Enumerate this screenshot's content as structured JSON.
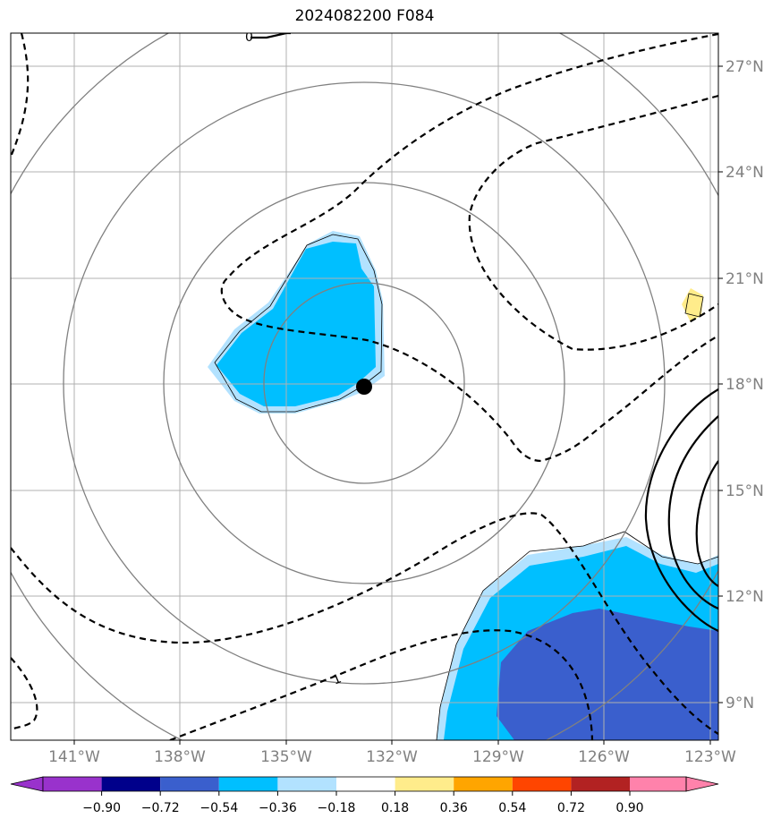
{
  "title": "2024082200 F084",
  "colors": {
    "neg_090_plus": "#9932cc",
    "neg_072_090": "#00008b",
    "neg_054_072": "#3a5fcd",
    "neg_036_054": "#00bfff",
    "neg_018_036": "#b2e2ff",
    "neutral": "#ffffff",
    "pos_018_036": "#ffec8b",
    "pos_036_054": "#ffa500",
    "pos_054_072": "#ff4500",
    "pos_072_090": "#b22222",
    "pos_090_plus": "#ff82ab",
    "grid": "#b0b0b0",
    "range_rings": "#808080",
    "axis_labels": "#808080"
  },
  "map": {
    "lon_labels": [
      "141°W",
      "138°W",
      "135°W",
      "132°W",
      "129°W",
      "126°W",
      "123°W"
    ],
    "lat_labels": [
      "27°N",
      "24°N",
      "21°N",
      "18°N",
      "15°N",
      "12°N",
      "9°N"
    ],
    "storm_center": {
      "lon": -132.7,
      "lat": 17.9
    },
    "contour_labels": [
      "0",
      "1"
    ]
  },
  "colorbar": {
    "ticks": [
      "−0.90",
      "−0.72",
      "−0.54",
      "−0.36",
      "−0.18",
      "0.18",
      "0.36",
      "0.54",
      "0.72",
      "0.90"
    ]
  }
}
